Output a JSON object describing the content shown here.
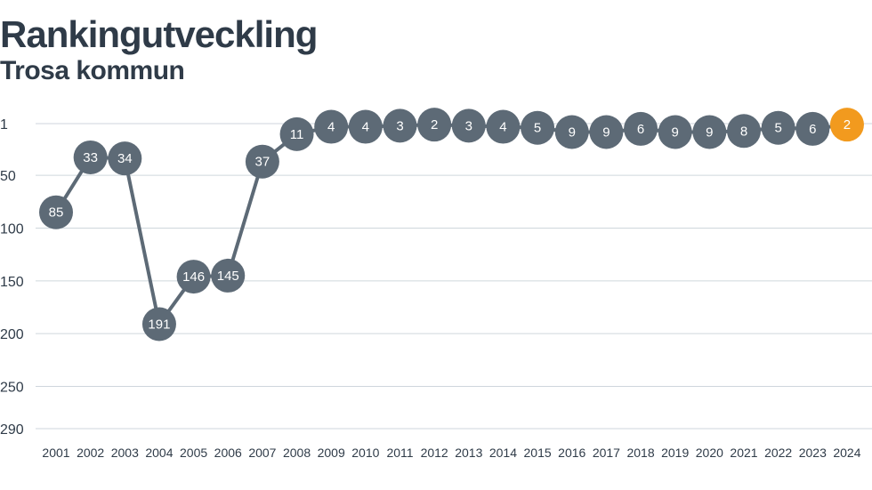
{
  "title": "Rankingutveckling",
  "subtitle": "Trosa kommun",
  "chart_data": {
    "type": "line",
    "title": "Rankingutveckling",
    "subtitle": "Trosa kommun",
    "xlabel": "",
    "ylabel": "",
    "y_inverted": true,
    "ylim": [
      1,
      290
    ],
    "yticks": [
      1,
      50,
      100,
      150,
      200,
      250,
      290
    ],
    "grid": true,
    "categories": [
      "2001",
      "2002",
      "2003",
      "2004",
      "2005",
      "2006",
      "2007",
      "2008",
      "2009",
      "2010",
      "2011",
      "2012",
      "2013",
      "2014",
      "2015",
      "2016",
      "2017",
      "2018",
      "2019",
      "2020",
      "2021",
      "2022",
      "2023",
      "2024"
    ],
    "values": [
      85,
      33,
      34,
      191,
      146,
      145,
      37,
      11,
      4,
      4,
      3,
      2,
      3,
      4,
      5,
      9,
      9,
      6,
      9,
      9,
      8,
      5,
      6,
      2
    ],
    "highlight_index": 23,
    "colors": {
      "line": "#5d6a76",
      "marker": "#5d6a76",
      "highlight": "#f29a1e",
      "grid": "#cfd6dc",
      "text": "#2f3b48"
    }
  }
}
